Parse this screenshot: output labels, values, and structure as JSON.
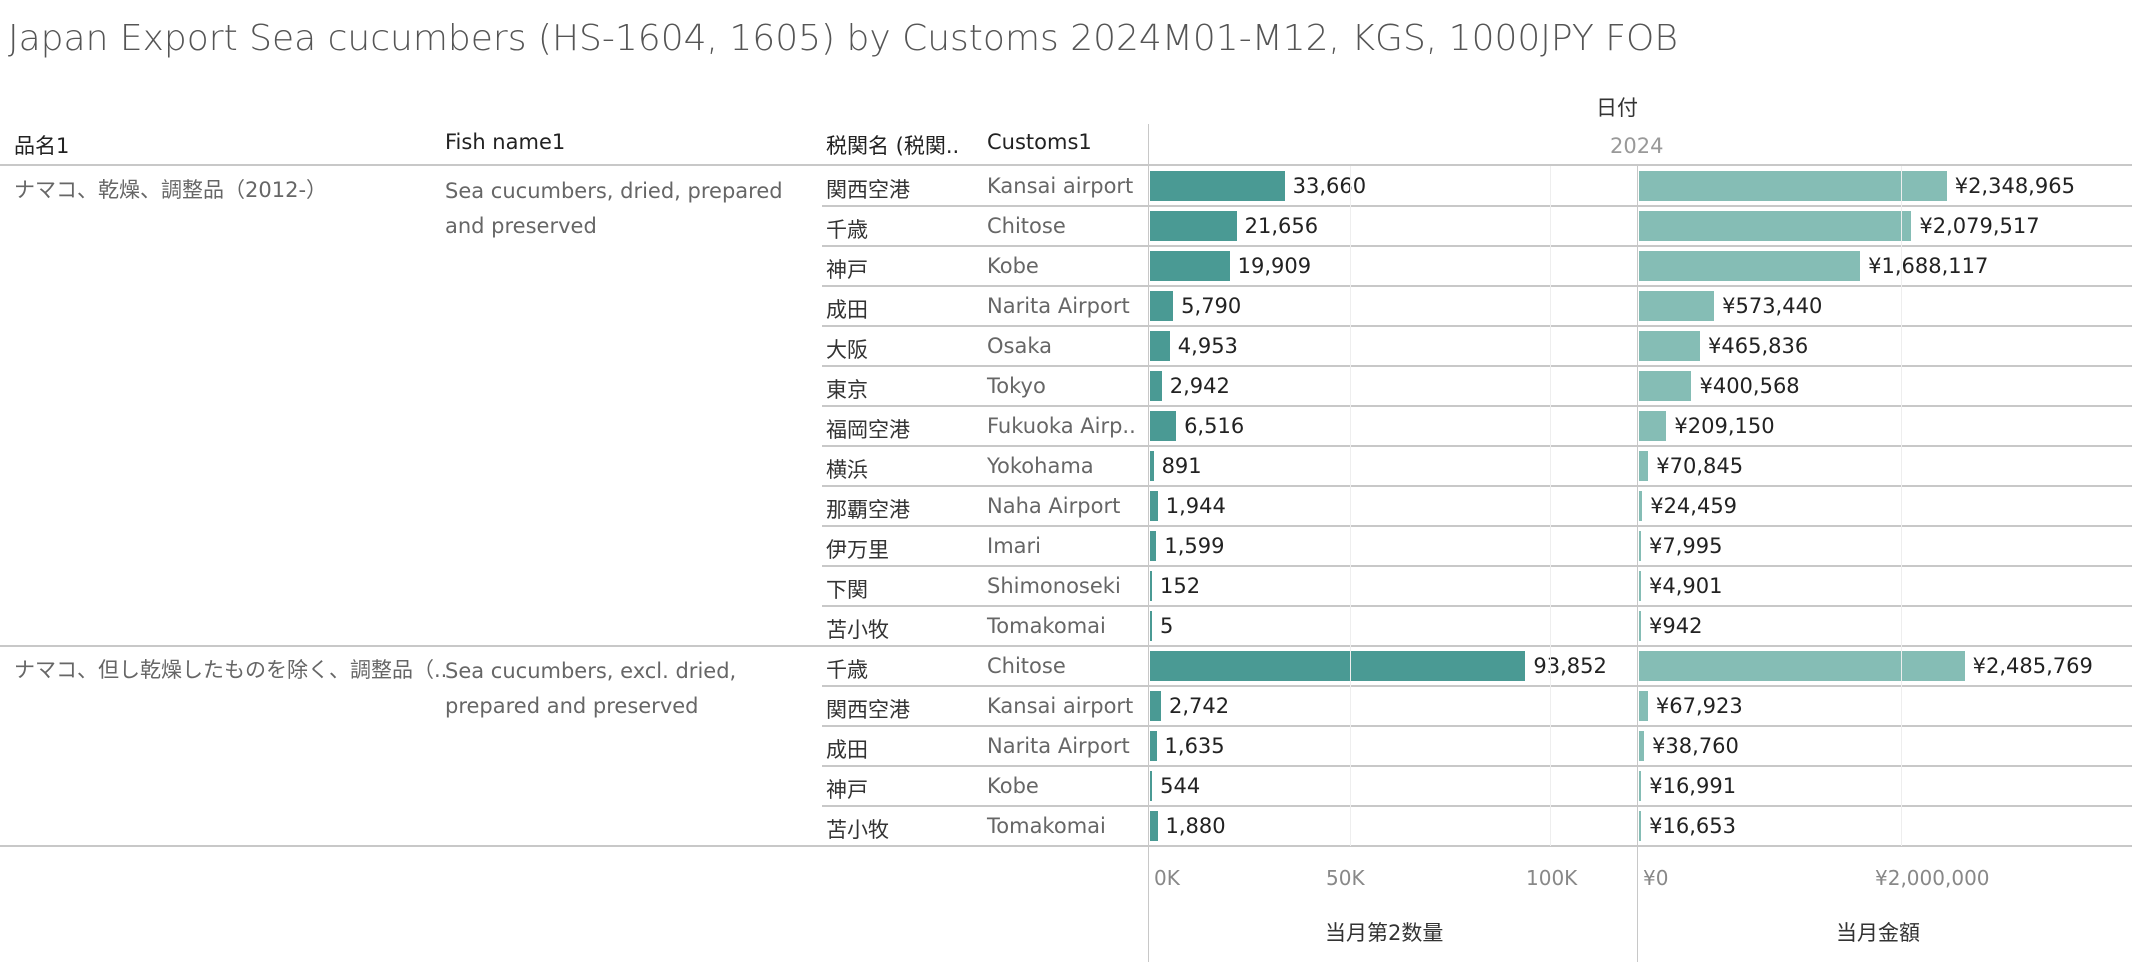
{
  "title": "Japan Export Sea cucumbers (HS-1604, 1605) by Customs 2024M01-M12, KGS, 1000JPY FOB",
  "headers": {
    "item": "品名1",
    "fish": "Fish name1",
    "customs_jp": "税関名 (税関..",
    "customs_en": "Customs1",
    "date": "日付",
    "year": "2024"
  },
  "chart_data": {
    "type": "bar",
    "title": "Japan Export Sea cucumbers (HS-1604, 1605) by Customs 2024M01-M12, KGS, 1000JPY FOB",
    "measures": [
      {
        "name": "当月第2数量",
        "xlim": [
          0,
          120000
        ],
        "ticks": [
          "0K",
          "50K",
          "100K"
        ],
        "tick_values": [
          0,
          50000,
          100000
        ],
        "color": "#4a9a94"
      },
      {
        "name": "当月金額",
        "xlim": [
          0,
          2750000
        ],
        "ticks": [
          "¥0",
          "¥2,000,000"
        ],
        "tick_values": [
          0,
          2000000
        ],
        "color": "#85bdb5"
      }
    ],
    "groups": [
      {
        "item": "ナマコ、乾燥、調整品（2012-）",
        "fish": "Sea cucumbers, dried, prepared and preserved",
        "rows": [
          {
            "jp": "関西空港",
            "en": "Kansai airport",
            "qty": 33660,
            "qty_label": "33,660",
            "amt": 2348965,
            "amt_label": "¥2,348,965"
          },
          {
            "jp": "千歳",
            "en": "Chitose",
            "qty": 21656,
            "qty_label": "21,656",
            "amt": 2079517,
            "amt_label": "¥2,079,517"
          },
          {
            "jp": "神戸",
            "en": "Kobe",
            "qty": 19909,
            "qty_label": "19,909",
            "amt": 1688117,
            "amt_label": "¥1,688,117"
          },
          {
            "jp": "成田",
            "en": "Narita Airport",
            "qty": 5790,
            "qty_label": "5,790",
            "amt": 573440,
            "amt_label": "¥573,440"
          },
          {
            "jp": "大阪",
            "en": "Osaka",
            "qty": 4953,
            "qty_label": "4,953",
            "amt": 465836,
            "amt_label": "¥465,836"
          },
          {
            "jp": "東京",
            "en": "Tokyo",
            "qty": 2942,
            "qty_label": "2,942",
            "amt": 400568,
            "amt_label": "¥400,568"
          },
          {
            "jp": "福岡空港",
            "en": "Fukuoka Airp..",
            "qty": 6516,
            "qty_label": "6,516",
            "amt": 209150,
            "amt_label": "¥209,150"
          },
          {
            "jp": "横浜",
            "en": "Yokohama",
            "qty": 891,
            "qty_label": "891",
            "amt": 70845,
            "amt_label": "¥70,845"
          },
          {
            "jp": "那覇空港",
            "en": "Naha Airport",
            "qty": 1944,
            "qty_label": "1,944",
            "amt": 24459,
            "amt_label": "¥24,459"
          },
          {
            "jp": "伊万里",
            "en": "Imari",
            "qty": 1599,
            "qty_label": "1,599",
            "amt": 7995,
            "amt_label": "¥7,995"
          },
          {
            "jp": "下関",
            "en": "Shimonoseki",
            "qty": 152,
            "qty_label": "152",
            "amt": 4901,
            "amt_label": "¥4,901"
          },
          {
            "jp": "苫小牧",
            "en": "Tomakomai",
            "qty": 5,
            "qty_label": "5",
            "amt": 942,
            "amt_label": "¥942"
          }
        ]
      },
      {
        "item": "ナマコ、但し乾燥したものを除く、調整品（..",
        "fish": "Sea cucumbers, excl. dried, prepared and preserved",
        "rows": [
          {
            "jp": "千歳",
            "en": "Chitose",
            "qty": 93852,
            "qty_label": "93,852",
            "amt": 2485769,
            "amt_label": "¥2,485,769"
          },
          {
            "jp": "関西空港",
            "en": "Kansai airport",
            "qty": 2742,
            "qty_label": "2,742",
            "amt": 67923,
            "amt_label": "¥67,923"
          },
          {
            "jp": "成田",
            "en": "Narita Airport",
            "qty": 1635,
            "qty_label": "1,635",
            "amt": 38760,
            "amt_label": "¥38,760"
          },
          {
            "jp": "神戸",
            "en": "Kobe",
            "qty": 544,
            "qty_label": "544",
            "amt": 16991,
            "amt_label": "¥16,991"
          },
          {
            "jp": "苫小牧",
            "en": "Tomakomai",
            "qty": 1880,
            "qty_label": "1,880",
            "amt": 16653,
            "amt_label": "¥16,653"
          }
        ]
      }
    ]
  }
}
